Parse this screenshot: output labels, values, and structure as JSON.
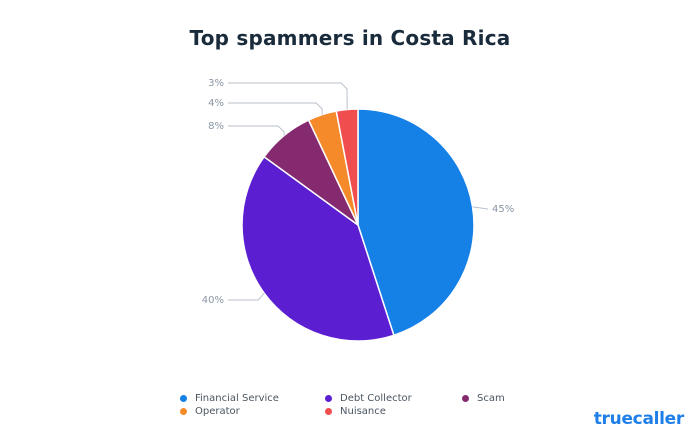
{
  "chart_data": {
    "type": "pie",
    "title": "Top spammers in Costa Rica",
    "slices": [
      {
        "name": "Financial Service",
        "value": 45,
        "label": "45%",
        "color": "#1580E6"
      },
      {
        "name": "Debt Collector",
        "value": 40,
        "label": "40%",
        "color": "#5B1FD1"
      },
      {
        "name": "Scam",
        "value": 8,
        "label": "8%",
        "color": "#862A70"
      },
      {
        "name": "Operator",
        "value": 4,
        "label": "4%",
        "color": "#F58A2A"
      },
      {
        "name": "Nuisance",
        "value": 3,
        "label": "3%",
        "color": "#F04E4E"
      }
    ],
    "legend_position": "bottom"
  },
  "brand": "truecaller"
}
